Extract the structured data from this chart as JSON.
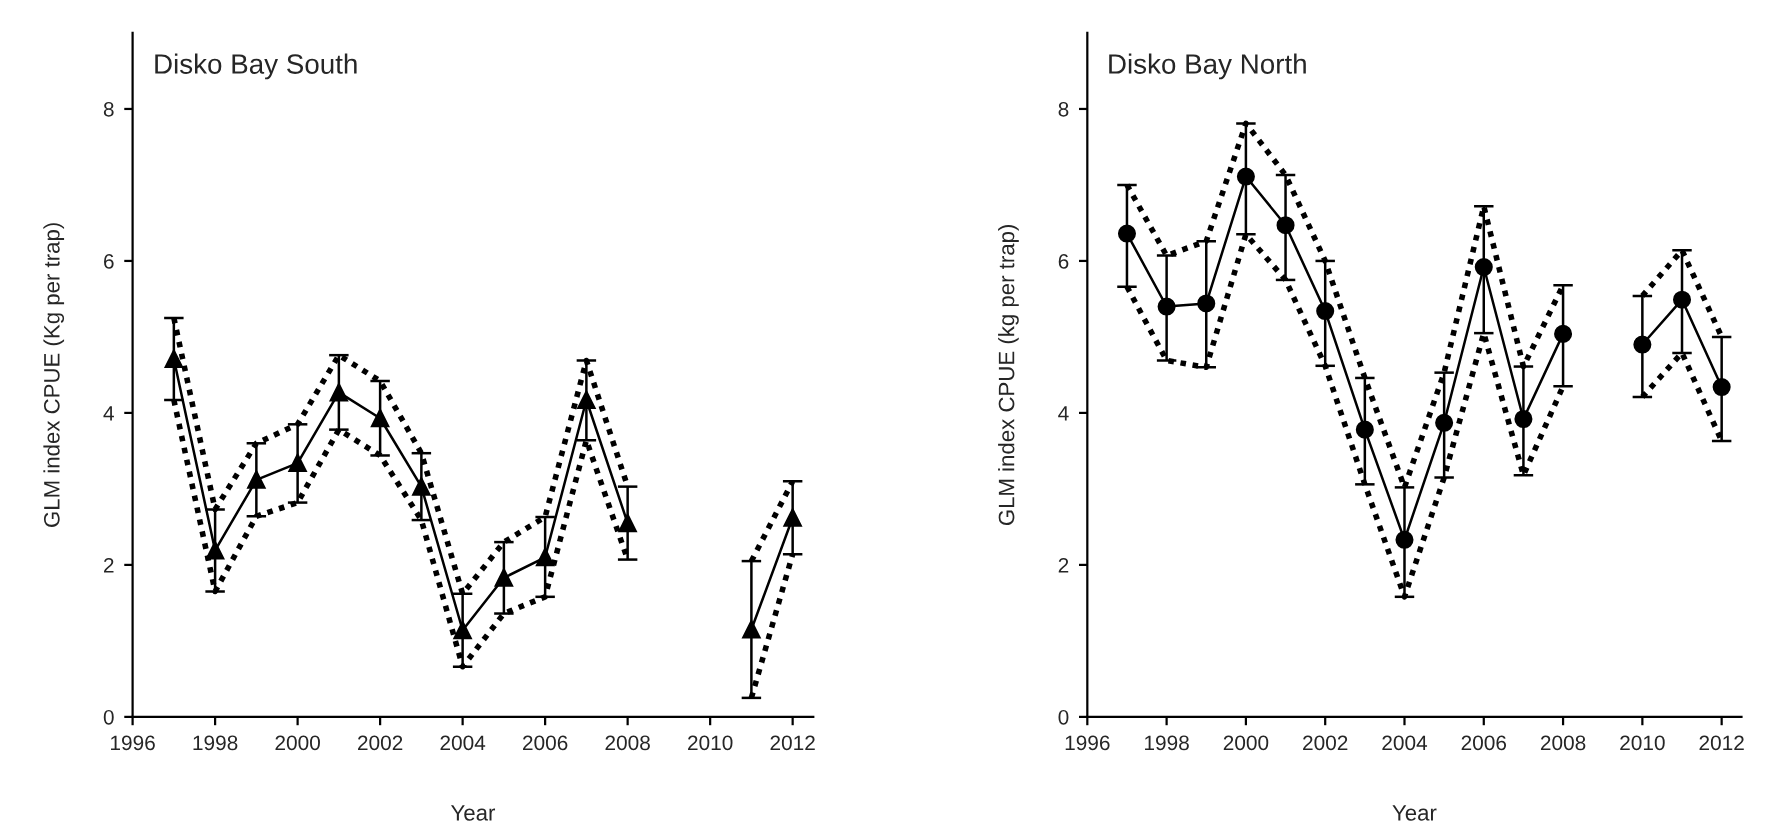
{
  "chart_data": [
    {
      "type": "line",
      "title": "Disko Bay South",
      "xlabel": "Year",
      "ylabel": "GLM index CPUE (Kg per trap)",
      "x": [
        1997,
        1998,
        1999,
        2000,
        2001,
        2002,
        2003,
        2004,
        2005,
        2006,
        2007,
        2008,
        2009,
        2010,
        2011,
        2012
      ],
      "series": [
        {
          "color": "#000000",
          "marker": "triangle",
          "line_style": "solid",
          "values": [
            4.71,
            2.19,
            3.12,
            3.34,
            4.27,
            3.93,
            3.03,
            1.14,
            1.83,
            2.1,
            4.17,
            2.55,
            null,
            null,
            1.15,
            2.62
          ],
          "errors": [
            [
              4.17,
              5.25
            ],
            [
              1.65,
              2.73
            ],
            [
              2.64,
              3.6
            ],
            [
              2.82,
              3.85
            ],
            [
              3.78,
              4.76
            ],
            [
              3.44,
              4.42
            ],
            [
              2.59,
              3.47
            ],
            [
              0.66,
              1.62
            ],
            [
              1.36,
              2.3
            ],
            [
              1.58,
              2.63
            ],
            [
              3.64,
              4.69
            ],
            [
              2.07,
              3.03
            ],
            null,
            null,
            [
              0.25,
              2.05
            ],
            [
              2.14,
              3.1
            ]
          ]
        },
        {
          "color": "#000000",
          "marker": "none",
          "line_style": "dotted",
          "values": [
            5.25,
            2.73,
            3.6,
            3.85,
            4.76,
            4.42,
            3.47,
            1.62,
            2.3,
            2.63,
            4.69,
            3.03,
            null,
            null,
            2.05,
            3.1
          ]
        },
        {
          "color": "#000000",
          "marker": "none",
          "line_style": "dotted",
          "values": [
            4.17,
            1.65,
            2.64,
            2.82,
            3.78,
            3.44,
            2.59,
            0.66,
            1.36,
            1.58,
            3.64,
            2.07,
            null,
            null,
            0.25,
            2.14
          ]
        }
      ],
      "xlim": [
        1996,
        2012.5
      ],
      "xticks": [
        1996,
        1998,
        2000,
        2002,
        2004,
        2006,
        2008,
        2010,
        2012
      ],
      "ylim": [
        0,
        9
      ],
      "yticks": [
        0,
        2,
        4,
        6,
        8
      ]
    },
    {
      "type": "line",
      "title": "Disko Bay North",
      "xlabel": "Year",
      "ylabel": "GLM index CPUE (kg per trap)",
      "x": [
        1997,
        1998,
        1999,
        2000,
        2001,
        2002,
        2003,
        2004,
        2005,
        2006,
        2007,
        2008,
        2009,
        2010,
        2011,
        2012
      ],
      "series": [
        {
          "color": "#000000",
          "marker": "circle",
          "line_style": "solid",
          "values": [
            6.36,
            5.4,
            5.44,
            7.11,
            6.47,
            5.34,
            3.78,
            2.33,
            3.87,
            5.92,
            3.92,
            5.04,
            null,
            4.9,
            5.49,
            4.34
          ],
          "errors": [
            [
              5.66,
              7.0
            ],
            [
              4.69,
              6.07
            ],
            [
              4.6,
              6.26
            ],
            [
              6.35,
              7.81
            ],
            [
              5.75,
              7.13
            ],
            [
              4.62,
              6.0
            ],
            [
              3.06,
              4.46
            ],
            [
              1.58,
              3.02
            ],
            [
              3.15,
              4.53
            ],
            [
              5.05,
              6.72
            ],
            [
              3.18,
              4.61
            ],
            [
              4.35,
              5.68
            ],
            null,
            [
              4.21,
              5.54
            ],
            [
              4.79,
              6.14
            ],
            [
              3.63,
              5.0
            ]
          ]
        },
        {
          "color": "#000000",
          "marker": "none",
          "line_style": "dotted",
          "values": [
            7.0,
            6.07,
            6.26,
            7.81,
            7.13,
            6.0,
            4.46,
            3.02,
            4.53,
            6.72,
            4.61,
            5.68,
            null,
            5.54,
            6.14,
            5.0
          ]
        },
        {
          "color": "#000000",
          "marker": "none",
          "line_style": "dotted",
          "values": [
            5.66,
            4.69,
            4.6,
            6.35,
            5.75,
            4.62,
            3.06,
            1.58,
            3.15,
            5.05,
            3.18,
            4.35,
            null,
            4.21,
            4.79,
            3.63
          ]
        }
      ],
      "xlim": [
        1996,
        2012.5
      ],
      "xticks": [
        1996,
        1998,
        2000,
        2002,
        2004,
        2006,
        2008,
        2010,
        2012
      ],
      "ylim": [
        0,
        9
      ],
      "yticks": [
        0,
        2,
        4,
        6,
        8
      ]
    }
  ]
}
